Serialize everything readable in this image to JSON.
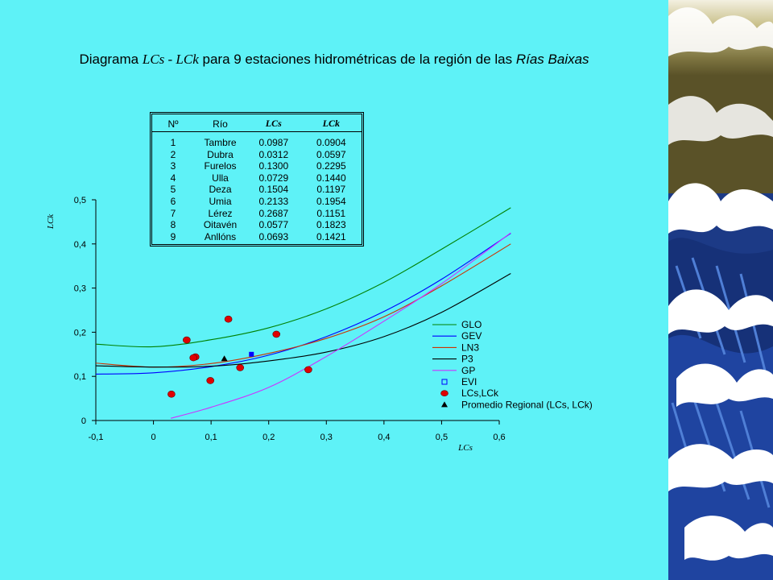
{
  "title": {
    "prefix": "Diagrama ",
    "vars": "LCs - LCk",
    "middle": " para 9 estaciones hidrométricas de la región de las ",
    "region": "Rías Baixas"
  },
  "table": {
    "headers": [
      "Nº",
      "Río",
      "LCs",
      "LCk"
    ],
    "rows": [
      [
        "1",
        "Tambre",
        "0.0987",
        "0.0904"
      ],
      [
        "2",
        "Dubra",
        "0.0312",
        "0.0597"
      ],
      [
        "3",
        "Furelos",
        "0.1300",
        "0.2295"
      ],
      [
        "4",
        "Ulla",
        "0.0729",
        "0.1440"
      ],
      [
        "5",
        "Deza",
        "0.1504",
        "0.1197"
      ],
      [
        "6",
        "Umia",
        "0.2133",
        "0.1954"
      ],
      [
        "7",
        "Lérez",
        "0.2687",
        "0.1151"
      ],
      [
        "8",
        "Oitavén",
        "0.0577",
        "0.1823"
      ],
      [
        "9",
        "Anllóns",
        "0.0693",
        "0.1421"
      ]
    ]
  },
  "colors": {
    "background": "#5ef2f7",
    "GLO": "#008000",
    "GEV": "#0000ff",
    "LN3": "#cc3300",
    "P3": "#000000",
    "GP": "#cc33ff",
    "EVI": "#0000ff",
    "points": "#e00000"
  },
  "chart_data": {
    "type": "scatter",
    "xlabel": "LCs",
    "ylabel": "LCk",
    "xlim": [
      -0.1,
      0.6
    ],
    "ylim": [
      0,
      0.5
    ],
    "xticks": [
      "-0,1",
      "0",
      "0,1",
      "0,2",
      "0,3",
      "0,4",
      "0,5",
      "0,6"
    ],
    "yticks": [
      "0",
      "0,1",
      "0,2",
      "0,3",
      "0,4",
      "0,5"
    ],
    "grid": false,
    "legend_position": "right",
    "curves": [
      {
        "name": "GLO",
        "x": [
          -0.1,
          0,
          0.1,
          0.2,
          0.3,
          0.4,
          0.5,
          0.62
        ],
        "y": [
          0.173,
          0.167,
          0.183,
          0.21,
          0.253,
          0.313,
          0.388,
          0.482
        ]
      },
      {
        "name": "GEV",
        "x": [
          -0.1,
          0,
          0.1,
          0.2,
          0.3,
          0.4,
          0.5,
          0.62
        ],
        "y": [
          0.105,
          0.108,
          0.122,
          0.148,
          0.19,
          0.247,
          0.32,
          0.424
        ]
      },
      {
        "name": "LN3",
        "x": [
          -0.1,
          0,
          0.1,
          0.2,
          0.3,
          0.4,
          0.5,
          0.62
        ],
        "y": [
          0.13,
          0.121,
          0.129,
          0.152,
          0.186,
          0.235,
          0.305,
          0.4
        ]
      },
      {
        "name": "P3",
        "x": [
          -0.1,
          0,
          0.1,
          0.2,
          0.3,
          0.4,
          0.5,
          0.62
        ],
        "y": [
          0.124,
          0.121,
          0.123,
          0.135,
          0.155,
          0.19,
          0.245,
          0.333
        ]
      },
      {
        "name": "GP",
        "x": [
          0.03,
          0.1,
          0.2,
          0.3,
          0.4,
          0.5,
          0.62
        ],
        "y": [
          0.005,
          0.03,
          0.075,
          0.145,
          0.225,
          0.31,
          0.425
        ]
      }
    ],
    "stations": {
      "name": "LCs,LCk",
      "x": [
        0.0987,
        0.0312,
        0.13,
        0.0729,
        0.1504,
        0.2133,
        0.2687,
        0.0577,
        0.0693
      ],
      "y": [
        0.0904,
        0.0597,
        0.2295,
        0.144,
        0.1197,
        0.1954,
        0.1151,
        0.1823,
        0.1421
      ]
    },
    "evi": {
      "name": "EVI",
      "x": 0.17,
      "y": 0.15
    },
    "regional_mean": {
      "name": "Promedio Regional (LCs, LCk)",
      "x": 0.123,
      "y": 0.14
    },
    "legend": [
      "GLO",
      "GEV",
      "LN3",
      "P3",
      "GP",
      "EVI",
      "LCs,LCk",
      "Promedio Regional (LCs, LCk)"
    ]
  }
}
